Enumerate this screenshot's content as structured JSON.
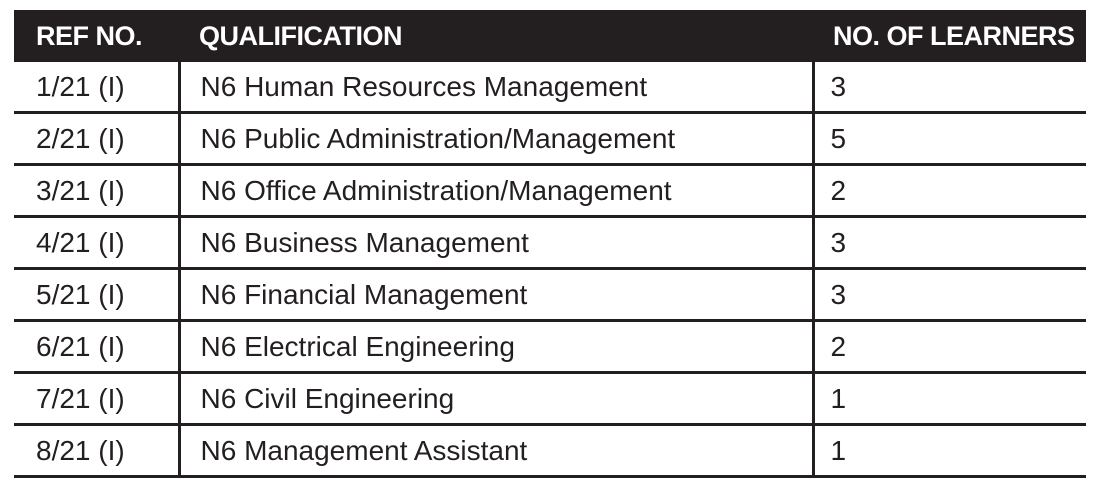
{
  "table": {
    "columns": [
      {
        "id": "ref",
        "label": "REF NO."
      },
      {
        "id": "qualification",
        "label": "QUALIFICATION"
      },
      {
        "id": "learners",
        "label": "NO. OF LEARNERS"
      }
    ],
    "rows": [
      {
        "ref": "1/21 (I)",
        "qualification": "N6 Human Resources Management",
        "learners": "3"
      },
      {
        "ref": "2/21 (I)",
        "qualification": "N6 Public Administration/Management",
        "learners": "5"
      },
      {
        "ref": "3/21 (I)",
        "qualification": "N6 Office Administration/Management",
        "learners": "2"
      },
      {
        "ref": "4/21 (I)",
        "qualification": "N6 Business Management",
        "learners": "3"
      },
      {
        "ref": "5/21 (I)",
        "qualification": "N6 Financial Management",
        "learners": "3"
      },
      {
        "ref": "6/21 (I)",
        "qualification": "N6 Electrical Engineering",
        "learners": "2"
      },
      {
        "ref": "7/21 (I)",
        "qualification": "N6 Civil Engineering",
        "learners": "1"
      },
      {
        "ref": "8/21 (I)",
        "qualification": "N6 Management Assistant",
        "learners": "1"
      }
    ]
  },
  "colors": {
    "header_background": "#231f20",
    "header_text": "#ffffff",
    "body_text": "#231f20",
    "border": "#231f20",
    "page_background": "#ffffff"
  }
}
